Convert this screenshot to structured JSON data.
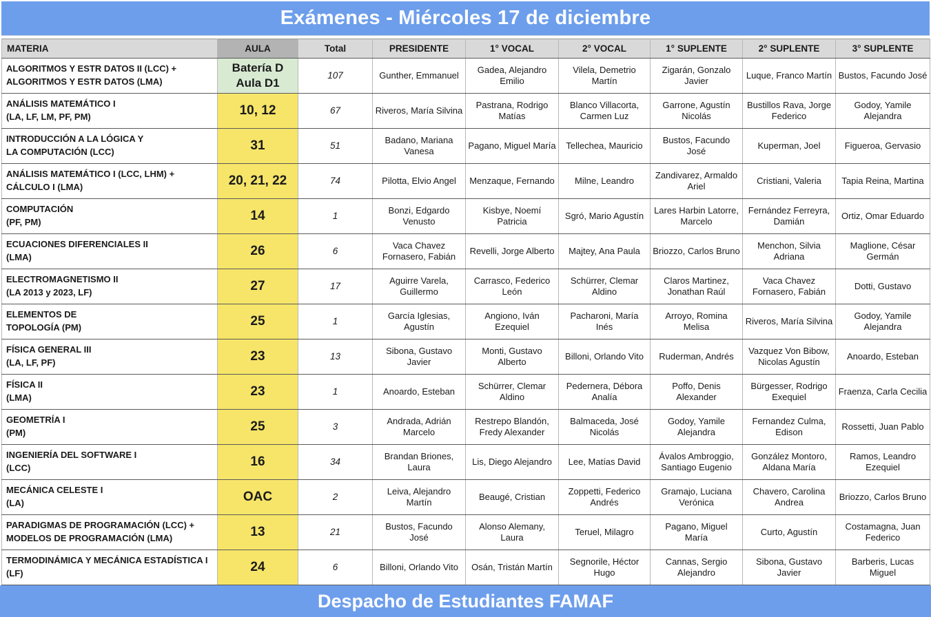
{
  "title": "Exámenes - Miércoles 17 de diciembre",
  "footer": "Despacho de Estudiantes FAMAF",
  "colors": {
    "accent_blue": "#6d9eeb",
    "header_gray": "#d9d9d9",
    "aula_header_gray": "#b3b3b3",
    "aula_yellow": "#f6e569",
    "aula_green": "#d9ead3",
    "text": "#1a1a1a",
    "row_border": "#5a5a5a",
    "column_border": "#b7b7b7"
  },
  "columns": [
    "MATERIA",
    "AULA",
    "Total",
    "PRESIDENTE",
    "1° VOCAL",
    "2° VOCAL",
    "1° SUPLENTE",
    "2° SUPLENTE",
    "3° SUPLENTE"
  ],
  "rows": [
    {
      "materia": [
        "ALGORITMOS Y ESTR DATOS II (LCC) +",
        "ALGORITMOS Y ESTR DATOS (LMA)"
      ],
      "aula": [
        "Batería D",
        "Aula D1"
      ],
      "aula_color": "green",
      "total": "107",
      "presidente": "Gunther, Emmanuel",
      "vocal1": "Gadea, Alejandro Emilio",
      "vocal2": "Vilela, Demetrio Martín",
      "suplente1": "Zigarán, Gonzalo Javier",
      "suplente2": "Luque, Franco Martín",
      "suplente3": "Bustos, Facundo José"
    },
    {
      "materia": [
        "ANÁLISIS MATEMÁTICO I",
        "(LA, LF, LM, PF, PM)"
      ],
      "aula": [
        "10, 12"
      ],
      "aula_color": "yellow",
      "total": "67",
      "presidente": "Riveros, María Silvina",
      "vocal1": "Pastrana, Rodrigo Matías",
      "vocal2": "Blanco Villacorta, Carmen Luz",
      "suplente1": "Garrone, Agustín Nicolás",
      "suplente2": "Bustillos Rava, Jorge Federico",
      "suplente3": "Godoy, Yamile Alejandra"
    },
    {
      "materia": [
        "INTRODUCCIÓN A LA LÓGICA Y",
        "LA COMPUTACIÓN (LCC)"
      ],
      "aula": [
        "31"
      ],
      "aula_color": "yellow",
      "total": "51",
      "presidente": "Badano, Mariana Vanesa",
      "vocal1": "Pagano, Miguel María",
      "vocal2": "Tellechea, Mauricio",
      "suplente1": "Bustos, Facundo José",
      "suplente2": "Kuperman, Joel",
      "suplente3": "Figueroa, Gervasio"
    },
    {
      "materia": [
        "ANÁLISIS MATEMÁTICO I (LCC, LHM) +",
        "CÁLCULO I (LMA)"
      ],
      "aula": [
        "20, 21, 22"
      ],
      "aula_color": "yellow",
      "total": "74",
      "presidente": "Pilotta, Elvio Angel",
      "vocal1": "Menzaque, Fernando",
      "vocal2": "Milne, Leandro",
      "suplente1": "Zandivarez, Armaldo Ariel",
      "suplente2": "Cristiani, Valeria",
      "suplente3": "Tapia Reina, Martina"
    },
    {
      "materia": [
        "COMPUTACIÓN",
        "(PF, PM)"
      ],
      "aula": [
        "14"
      ],
      "aula_color": "yellow",
      "total": "1",
      "presidente": "Bonzi, Edgardo Venusto",
      "vocal1": "Kisbye, Noemí Patricia",
      "vocal2": "Sgró, Mario Agustín",
      "suplente1": "Lares Harbin Latorre, Marcelo",
      "suplente2": "Fernández Ferreyra, Damián",
      "suplente3": "Ortiz, Omar Eduardo"
    },
    {
      "materia": [
        "ECUACIONES DIFERENCIALES II",
        "(LMA)"
      ],
      "aula": [
        "26"
      ],
      "aula_color": "yellow",
      "total": "6",
      "presidente": "Vaca Chavez Fornasero, Fabián",
      "vocal1": "Revelli, Jorge Alberto",
      "vocal2": "Majtey, Ana Paula",
      "suplente1": "Briozzo, Carlos Bruno",
      "suplente2": "Menchon, Silvia Adriana",
      "suplente3": "Maglione, César Germán"
    },
    {
      "materia": [
        "ELECTROMAGNETISMO II",
        "(LA 2013 y 2023, LF)"
      ],
      "aula": [
        "27"
      ],
      "aula_color": "yellow",
      "total": "17",
      "presidente": "Aguirre Varela, Guillermo",
      "vocal1": "Carrasco, Federico León",
      "vocal2": "Schürrer, Clemar Aldino",
      "suplente1": "Claros Martinez, Jonathan Raúl",
      "suplente2": "Vaca Chavez Fornasero, Fabián",
      "suplente3": "Dotti, Gustavo"
    },
    {
      "materia": [
        "ELEMENTOS DE",
        "TOPOLOGÍA (PM)"
      ],
      "aula": [
        "25"
      ],
      "aula_color": "yellow",
      "total": "1",
      "presidente": "García Iglesias, Agustín",
      "vocal1": "Angiono, Iván Ezequiel",
      "vocal2": "Pacharoni, María Inés",
      "suplente1": "Arroyo, Romina Melisa",
      "suplente2": "Riveros, María Silvina",
      "suplente3": "Godoy, Yamile Alejandra"
    },
    {
      "materia": [
        "FÍSICA GENERAL III",
        "(LA, LF, PF)"
      ],
      "aula": [
        "23"
      ],
      "aula_color": "yellow",
      "total": "13",
      "presidente": "Sibona, Gustavo Javier",
      "vocal1": "Monti, Gustavo Alberto",
      "vocal2": "Billoni, Orlando Vito",
      "suplente1": "Ruderman, Andrés",
      "suplente2": "Vazquez Von Bibow, Nicolas Agustín",
      "suplente3": "Anoardo, Esteban"
    },
    {
      "materia": [
        "FÍSICA II",
        "(LMA)"
      ],
      "aula": [
        "23"
      ],
      "aula_color": "yellow",
      "total": "1",
      "presidente": "Anoardo, Esteban",
      "vocal1": "Schürrer, Clemar Aldino",
      "vocal2": "Pedernera, Débora Analía",
      "suplente1": "Poffo, Denis Alexander",
      "suplente2": "Bürgesser, Rodrigo Exequiel",
      "suplente3": "Fraenza, Carla Cecilia"
    },
    {
      "materia": [
        "GEOMETRÍA I",
        "(PM)"
      ],
      "aula": [
        "25"
      ],
      "aula_color": "yellow",
      "total": "3",
      "presidente": "Andrada, Adrián Marcelo",
      "vocal1": "Restrepo Blandón, Fredy Alexander",
      "vocal2": "Balmaceda, José Nicolás",
      "suplente1": "Godoy, Yamile Alejandra",
      "suplente2": "Fernandez Culma, Edison",
      "suplente3": "Rossetti, Juan Pablo"
    },
    {
      "materia": [
        "INGENIERÍA DEL SOFTWARE I",
        "(LCC)"
      ],
      "aula": [
        "16"
      ],
      "aula_color": "yellow",
      "total": "34",
      "presidente": "Brandan Briones, Laura",
      "vocal1": "Lis, Diego Alejandro",
      "vocal2": "Lee, Matías David",
      "suplente1": "Ávalos Ambroggio, Santiago Eugenio",
      "suplente2": "González Montoro, Aldana María",
      "suplente3": "Ramos, Leandro Ezequiel"
    },
    {
      "materia": [
        "MECÁNICA CELESTE I",
        "(LA)"
      ],
      "aula": [
        "OAC"
      ],
      "aula_color": "yellow",
      "total": "2",
      "presidente": "Leiva, Alejandro Martín",
      "vocal1": "Beaugé, Cristian",
      "vocal2": "Zoppetti, Federico Andrés",
      "suplente1": "Gramajo, Luciana Verónica",
      "suplente2": "Chavero, Carolina Andrea",
      "suplente3": "Briozzo, Carlos Bruno"
    },
    {
      "materia": [
        "PARADIGMAS DE PROGRAMACIÓN (LCC) +",
        "MODELOS DE PROGRAMACIÓN (LMA)"
      ],
      "aula": [
        "13"
      ],
      "aula_color": "yellow",
      "total": "21",
      "presidente": "Bustos, Facundo José",
      "vocal1": "Alonso Alemany, Laura",
      "vocal2": "Teruel, Milagro",
      "suplente1": "Pagano, Miguel María",
      "suplente2": "Curto, Agustín",
      "suplente3": "Costamagna, Juan Federico"
    },
    {
      "materia": [
        "TERMODINÁMICA Y MECÁNICA ESTADÍSTICA I",
        "(LF)"
      ],
      "aula": [
        "24"
      ],
      "aula_color": "yellow",
      "total": "6",
      "presidente": "Billoni, Orlando Vito",
      "vocal1": "Osán, Tristán Martín",
      "vocal2": "Segnorile, Héctor Hugo",
      "suplente1": "Cannas, Sergio Alejandro",
      "suplente2": "Sibona, Gustavo Javier",
      "suplente3": "Barberis, Lucas Miguel"
    }
  ]
}
